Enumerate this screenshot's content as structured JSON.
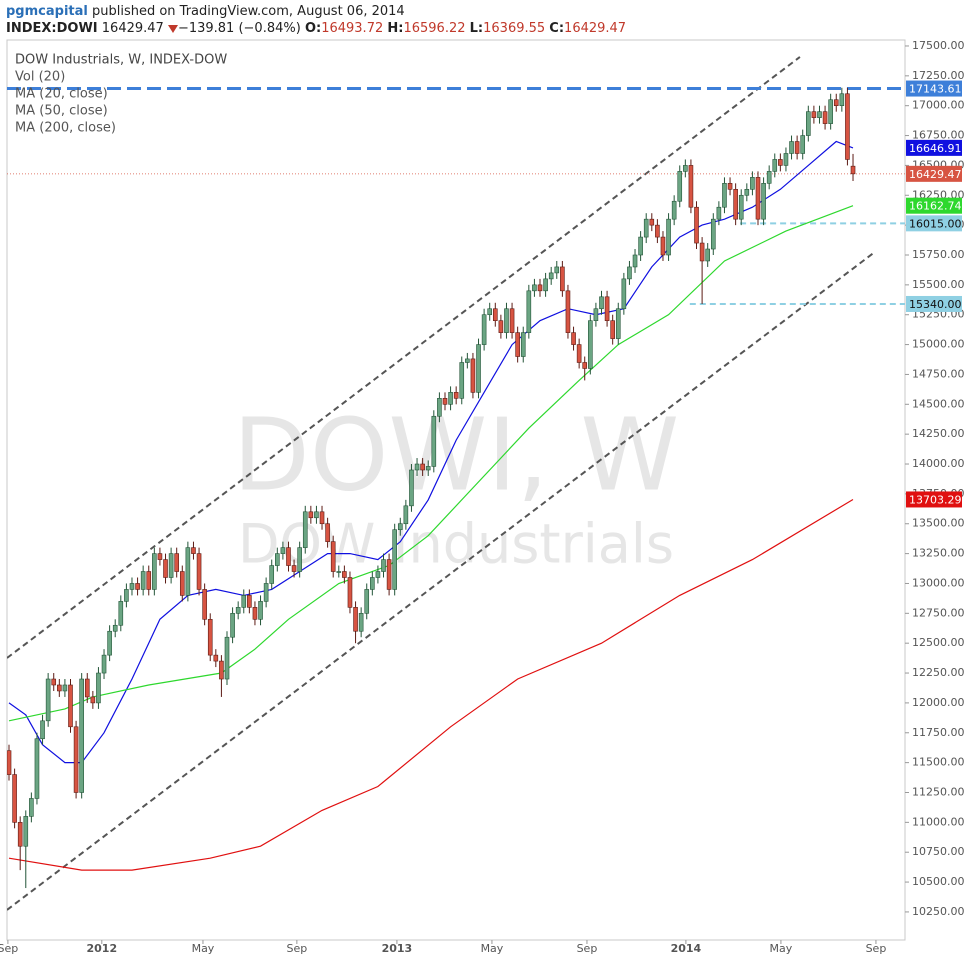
{
  "header": {
    "author": "pgmcapital",
    "published": "published on TradingView.com, August 06, 2014",
    "symbol": "INDEX:DOWI",
    "change": "−139.81 (−0.84%)",
    "ohlc_labels": [
      "O:",
      "H:",
      "L:",
      "C:"
    ]
  },
  "chart_data": {
    "type": "candlestick",
    "name": "DOW Industrials, W, INDEX-DOW",
    "vol_label": "Vol (20)",
    "watermark": [
      "DOWI, W",
      "DOW Industrials"
    ],
    "colors": {
      "up": "#6ba583",
      "down": "#d75442",
      "up_wick": "#225437",
      "down_wick": "#5b1a13"
    },
    "xlim": [
      -0.36,
      160.3
    ],
    "ylim": [
      10015,
      17550
    ],
    "xticks": [
      {
        "value": -0.2,
        "label": "Sep"
      },
      {
        "value": 16.6,
        "label": "2012"
      },
      {
        "value": 34.7,
        "label": "May"
      },
      {
        "value": 51.5,
        "label": "Sep"
      },
      {
        "value": 69.4,
        "label": "2013"
      },
      {
        "value": 86.4,
        "label": "May"
      },
      {
        "value": 103.4,
        "label": "Sep"
      },
      {
        "value": 121.1,
        "label": "2014"
      },
      {
        "value": 138.1,
        "label": "May"
      },
      {
        "value": 155.1,
        "label": "Sep"
      }
    ],
    "yticks": [
      {
        "value": 10250,
        "label": "10250.00"
      },
      {
        "value": 10500,
        "label": "10500.00"
      },
      {
        "value": 10750,
        "label": "10750.00"
      },
      {
        "value": 11000,
        "label": "11000.00"
      },
      {
        "value": 11250,
        "label": "11250.00"
      },
      {
        "value": 11500,
        "label": "11500.00"
      },
      {
        "value": 11750,
        "label": "11750.00"
      },
      {
        "value": 12000,
        "label": "12000.00"
      },
      {
        "value": 12250,
        "label": "12250.00"
      },
      {
        "value": 12500,
        "label": "12500.00"
      },
      {
        "value": 12750,
        "label": "12750.00"
      },
      {
        "value": 13000,
        "label": "13000.00"
      },
      {
        "value": 13250,
        "label": "13250.00"
      },
      {
        "value": 13500,
        "label": "13500.00"
      },
      {
        "value": 13750,
        "label": "13750.00"
      },
      {
        "value": 14000,
        "label": "14000.00"
      },
      {
        "value": 14250,
        "label": "14250.00"
      },
      {
        "value": 14500,
        "label": "14500.00"
      },
      {
        "value": 14750,
        "label": "14750.00"
      },
      {
        "value": 15000,
        "label": "15000.00"
      },
      {
        "value": 15250,
        "label": "15250.00"
      },
      {
        "value": 15500,
        "label": "15500.00"
      },
      {
        "value": 15750,
        "label": "15750.00"
      },
      {
        "value": 16000,
        "label": "16000.00"
      },
      {
        "value": 16250,
        "label": "16250.00"
      },
      {
        "value": 16500,
        "label": "16500.00"
      },
      {
        "value": 16750,
        "label": "16750.00"
      },
      {
        "value": 17000,
        "label": "17000.00"
      },
      {
        "value": 17250,
        "label": "17250.00"
      },
      {
        "value": 17500,
        "label": "17500.00"
      }
    ],
    "open": [
      11600,
      11400,
      11000,
      10800,
      11050,
      11200,
      11700,
      11850,
      12200,
      12150,
      12100,
      12150,
      11800,
      11250,
      12200,
      12050,
      12000,
      12250,
      12400,
      12600,
      12650,
      12850,
      12950,
      13000,
      12950,
      13100,
      12950,
      13250,
      13200,
      13050,
      13250,
      13100,
      12900,
      13300,
      13250,
      12950,
      12700,
      12400,
      12350,
      12200,
      12550,
      12750,
      12800,
      12900,
      12800,
      12700,
      12850,
      13000,
      13150,
      13250,
      13300,
      13150,
      13100,
      13300,
      13600,
      13550,
      13600,
      13500,
      13350,
      13100,
      13100,
      13050,
      12800,
      12600,
      12750,
      12950,
      13050,
      13100,
      13200,
      12950,
      13450,
      13500,
      13650,
      13950,
      14000,
      13950,
      13980,
      14400,
      14550,
      14500,
      14600,
      14550,
      14850,
      14880,
      14600,
      15000,
      15250,
      15300,
      15200,
      15100,
      15300,
      15100,
      14900,
      15100,
      15450,
      15500,
      15450,
      15550,
      15600,
      15650,
      15450,
      15100,
      15000,
      14850,
      14800,
      15200,
      15300,
      15400,
      15200,
      15050,
      15300,
      15550,
      15650,
      15750,
      15900,
      16050,
      16000,
      15900,
      15750,
      16050,
      16200,
      16450,
      16500,
      16150,
      15850,
      15700,
      15800,
      16050,
      16150,
      16350,
      16300,
      16050,
      16250,
      16300,
      16400,
      16050,
      16350,
      16450,
      16550,
      16500,
      16600,
      16700,
      16600,
      16750,
      16950,
      16900,
      16950,
      16850,
      17050,
      17000,
      17100,
      16493.72
    ],
    "high": [
      11650,
      11450,
      11050,
      11100,
      11250,
      11750,
      11900,
      12250,
      12250,
      12200,
      12200,
      12200,
      11850,
      12250,
      12250,
      12100,
      12300,
      12450,
      12650,
      12700,
      12900,
      13000,
      13050,
      13050,
      13150,
      13150,
      13300,
      13300,
      13250,
      13300,
      13300,
      13150,
      13350,
      13350,
      13300,
      13000,
      12750,
      12450,
      12400,
      12600,
      12800,
      12850,
      12950,
      12950,
      12850,
      12900,
      13050,
      13200,
      13300,
      13350,
      13350,
      13200,
      13350,
      13650,
      13650,
      13650,
      13650,
      13550,
      13400,
      13150,
      13150,
      13100,
      12850,
      12800,
      13000,
      13100,
      13150,
      13250,
      13250,
      13500,
      13550,
      13700,
      14000,
      14050,
      14050,
      14030,
      14450,
      14600,
      14600,
      14650,
      14650,
      14900,
      14930,
      14930,
      15050,
      15300,
      15350,
      15350,
      15250,
      15350,
      15350,
      15150,
      15150,
      15500,
      15550,
      15550,
      15600,
      15650,
      15700,
      15700,
      15500,
      15150,
      15050,
      14900,
      15250,
      15350,
      15450,
      15450,
      15250,
      15350,
      15600,
      15700,
      15800,
      15950,
      16100,
      16100,
      16050,
      15950,
      16100,
      16250,
      16500,
      16550,
      16550,
      16200,
      15900,
      15850,
      16100,
      16200,
      16400,
      16400,
      16350,
      16300,
      16350,
      16450,
      16450,
      16400,
      16500,
      16600,
      16600,
      16650,
      16750,
      16750,
      16800,
      17000,
      17000,
      17000,
      17000,
      17100,
      17100,
      17150,
      17150,
      16596.22
    ],
    "low": [
      11350,
      10950,
      10600,
      10450,
      11000,
      11150,
      11650,
      11800,
      12100,
      12050,
      12050,
      11750,
      11200,
      11200,
      12000,
      11950,
      11950,
      12200,
      12350,
      12550,
      12600,
      12800,
      12900,
      12900,
      12900,
      12900,
      12900,
      13150,
      13000,
      13000,
      13050,
      12850,
      12850,
      13200,
      12900,
      12650,
      12350,
      12300,
      12050,
      12150,
      12500,
      12700,
      12750,
      12750,
      12650,
      12650,
      12800,
      12950,
      13100,
      13200,
      13100,
      13050,
      13050,
      13250,
      13500,
      13500,
      13450,
      13300,
      13050,
      13050,
      13000,
      12750,
      12500,
      12550,
      12700,
      12900,
      13000,
      13050,
      12900,
      12900,
      13400,
      13450,
      13600,
      13900,
      13900,
      13900,
      13930,
      14350,
      14450,
      14450,
      14500,
      14500,
      14800,
      14550,
      14550,
      14950,
      15200,
      15150,
      15050,
      15050,
      15050,
      14850,
      14850,
      15050,
      15400,
      15400,
      15400,
      15500,
      15550,
      15400,
      15050,
      14950,
      14800,
      14700,
      14750,
      15150,
      15250,
      15150,
      15000,
      15000,
      15250,
      15500,
      15600,
      15700,
      15850,
      15950,
      15850,
      15700,
      15700,
      16000,
      16150,
      16400,
      16100,
      15800,
      15340,
      15650,
      15750,
      16000,
      16100,
      16250,
      16000,
      16000,
      16200,
      16250,
      16000,
      16000,
      16300,
      16400,
      16450,
      16450,
      16550,
      16550,
      16550,
      16700,
      16850,
      16850,
      16800,
      16800,
      16950,
      16950,
      16500,
      16369.55
    ],
    "close": [
      11400,
      11000,
      10800,
      11050,
      11200,
      11700,
      11850,
      12200,
      12150,
      12100,
      12150,
      11800,
      11250,
      12200,
      12050,
      12000,
      12250,
      12400,
      12600,
      12650,
      12850,
      12950,
      13000,
      12950,
      13100,
      12950,
      13250,
      13200,
      13050,
      13250,
      13100,
      12900,
      13300,
      13250,
      12950,
      12700,
      12400,
      12350,
      12200,
      12550,
      12750,
      12800,
      12900,
      12800,
      12700,
      12850,
      13000,
      13150,
      13250,
      13300,
      13150,
      13100,
      13300,
      13600,
      13550,
      13600,
      13500,
      13350,
      13100,
      13100,
      13050,
      12800,
      12600,
      12750,
      12950,
      13050,
      13100,
      13200,
      12950,
      13450,
      13500,
      13650,
      13950,
      14000,
      13950,
      13980,
      14400,
      14550,
      14500,
      14600,
      14550,
      14850,
      14880,
      14600,
      15000,
      15250,
      15300,
      15200,
      15100,
      15300,
      15100,
      14900,
      15100,
      15450,
      15500,
      15450,
      15550,
      15600,
      15650,
      15450,
      15100,
      15000,
      14850,
      14800,
      15200,
      15300,
      15400,
      15200,
      15050,
      15300,
      15550,
      15650,
      15750,
      15900,
      16050,
      16000,
      15900,
      15750,
      16050,
      16200,
      16450,
      16500,
      16150,
      15850,
      15700,
      15800,
      16050,
      16150,
      16350,
      16300,
      16050,
      16250,
      16300,
      16400,
      16050,
      16350,
      16450,
      16550,
      16500,
      16600,
      16700,
      16600,
      16750,
      16950,
      16900,
      16950,
      16850,
      17050,
      17000,
      17100,
      16550,
      16429.47
    ],
    "ma": [
      {
        "name": "MA (20, close)",
        "color": "#1010e0",
        "x": [
          0,
          3,
          6,
          10,
          13,
          17,
          22,
          27,
          32,
          37,
          42,
          47,
          52,
          57,
          61,
          66,
          70,
          75,
          80,
          85,
          90,
          95,
          100,
          105,
          110,
          115,
          120,
          124,
          128,
          133,
          138,
          143,
          148,
          151
        ],
        "values": [
          12000,
          11900,
          11650,
          11500,
          11500,
          11750,
          12200,
          12700,
          12900,
          12950,
          12900,
          12950,
          13100,
          13250,
          13250,
          13200,
          13350,
          13700,
          14200,
          14600,
          15000,
          15200,
          15300,
          15250,
          15300,
          15650,
          15900,
          16000,
          16050,
          16150,
          16300,
          16500,
          16700,
          16646.91
        ]
      },
      {
        "name": "MA (50, close)",
        "color": "#2ed82e",
        "x": [
          0,
          10,
          15,
          25,
          38,
          44,
          50,
          59,
          68,
          75,
          82,
          93,
          102,
          109,
          118,
          128,
          139,
          151
        ],
        "values": [
          11850,
          11950,
          12050,
          12150,
          12250,
          12450,
          12700,
          13000,
          13150,
          13400,
          13750,
          14300,
          14700,
          15000,
          15250,
          15700,
          15950,
          16162.74
        ]
      },
      {
        "name": "MA (200, close)",
        "color": "#e01010",
        "x": [
          0,
          13,
          22,
          36,
          45,
          56,
          66,
          79,
          91,
          106,
          120,
          133,
          151
        ],
        "values": [
          10700,
          10600,
          10600,
          10700,
          10800,
          11100,
          11300,
          11800,
          12200,
          12500,
          12900,
          13200,
          13703.29
        ]
      }
    ],
    "levels": [
      {
        "value": 17143.61,
        "color": "#3d7fd9",
        "from": -0.36
      },
      {
        "value": 16015,
        "value_label": "16015.00",
        "color": "#8fd0e3",
        "from": 130.8
      },
      {
        "value": 15340,
        "value_label": "15340.00",
        "color": "#8fd0e3",
        "from": 121.8
      }
    ],
    "channel_lines": [
      {
        "x": [
          -0.36,
          141.5
        ],
        "y": [
          12376,
          17408
        ]
      },
      {
        "x": [
          -0.36,
          154.9
        ],
        "y": [
          10267,
          15775
        ]
      }
    ],
    "last_price_color": "#d75442"
  }
}
